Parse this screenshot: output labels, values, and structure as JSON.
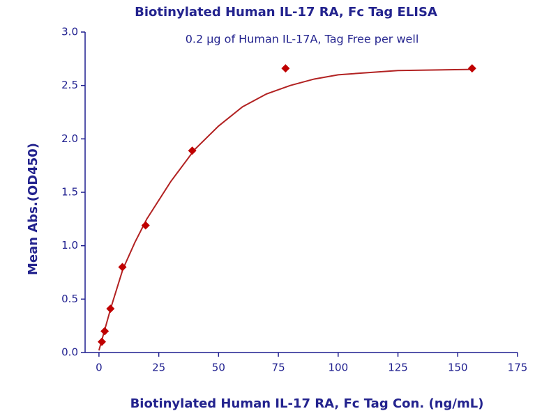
{
  "chart_data": {
    "type": "scatter",
    "title": "Biotinylated Human IL-17 RA, Fc Tag ELISA",
    "annotation": "0.2 μg of Human IL-17A, Tag Free per well",
    "x_label": "Biotinylated Human IL-17 RA, Fc Tag Con. (ng/mL)",
    "y_label": "Mean Abs.(OD450)",
    "series": [
      {
        "mode": "line",
        "color": "#b22222",
        "x": [
          0,
          2.5,
          5,
          10,
          15,
          20,
          30,
          40,
          50,
          60,
          70,
          80,
          90,
          100,
          125,
          156
        ],
        "values": [
          0.02,
          0.22,
          0.42,
          0.78,
          1.03,
          1.25,
          1.6,
          1.9,
          2.12,
          2.3,
          2.42,
          2.5,
          2.56,
          2.6,
          2.64,
          2.65
        ]
      },
      {
        "mode": "markers",
        "color": "#c00000",
        "x": [
          1.2,
          2.4,
          4.8,
          9.8,
          19.5,
          39,
          78,
          156
        ],
        "values": [
          0.1,
          0.2,
          0.41,
          0.8,
          1.19,
          1.89,
          2.66,
          2.66
        ]
      }
    ],
    "xlim": [
      -5.8,
      175
    ],
    "xticks": [
      0,
      25,
      50,
      75,
      100,
      125,
      150,
      175
    ],
    "ylim": [
      0,
      3
    ],
    "yticks": [
      {
        "value": 0,
        "label": "0.0"
      },
      0.5,
      {
        "value": 1,
        "label": "1.0"
      },
      1.5,
      {
        "value": 2,
        "label": "2.0"
      },
      2.5,
      {
        "value": 3,
        "label": "3.0"
      }
    ],
    "axis_color": "#1f1f8f"
  }
}
